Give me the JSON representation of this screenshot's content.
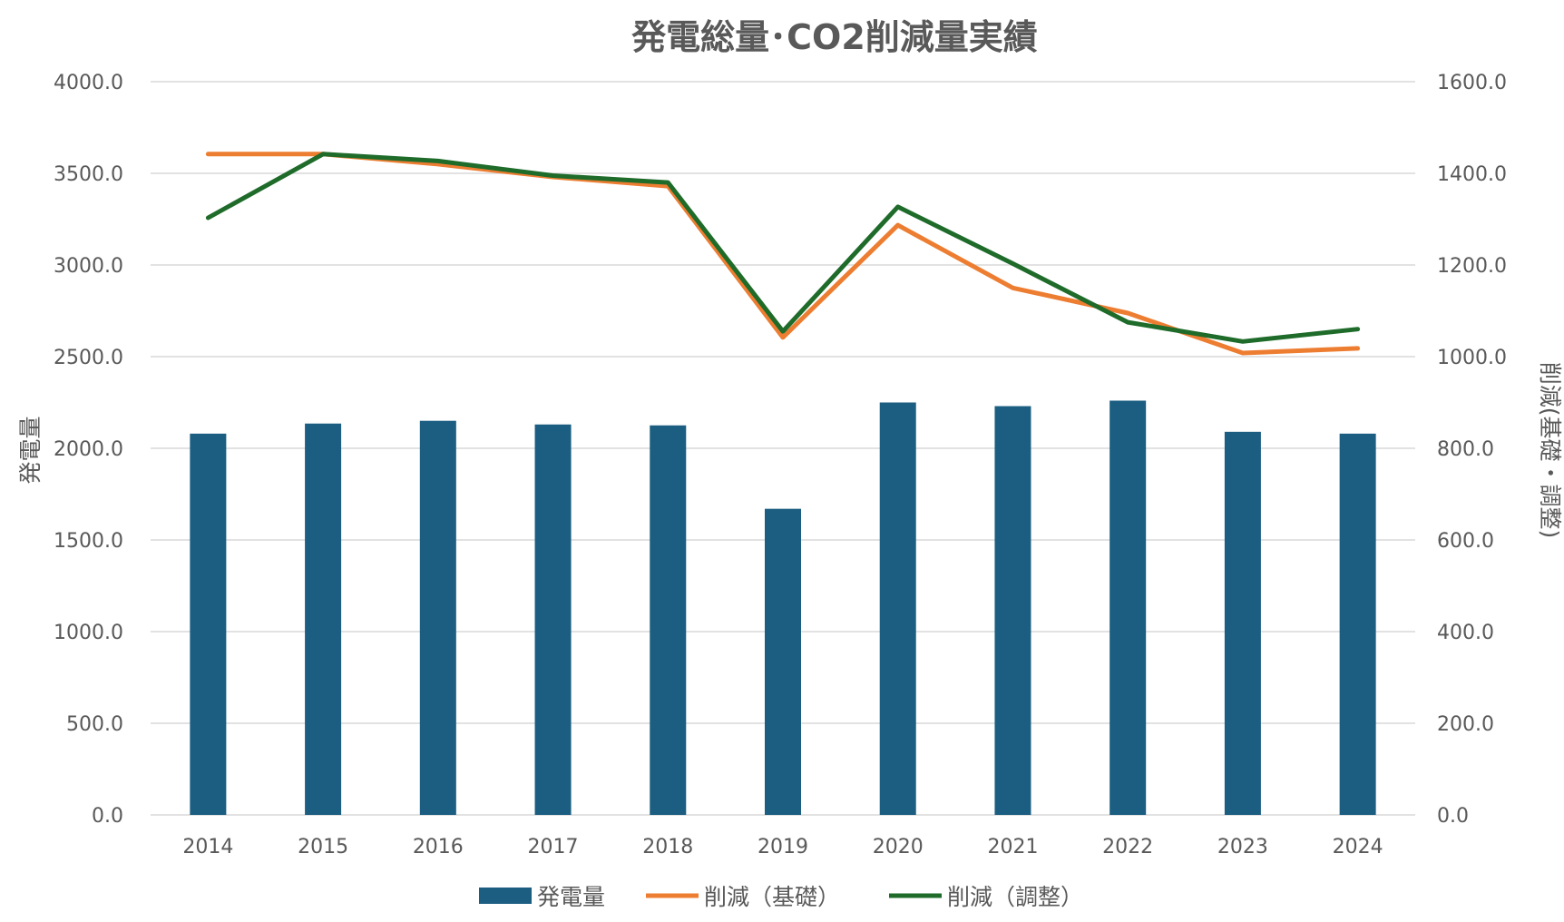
{
  "chart_data": {
    "type": "bar",
    "title": "発電総量･CO2削減量実績",
    "xlabel": "",
    "ylabel": "発電量",
    "y2label": "削減(基礎・調整)",
    "categories": [
      "2014",
      "2015",
      "2016",
      "2017",
      "2018",
      "2019",
      "2020",
      "2021",
      "2022",
      "2023",
      "2024"
    ],
    "ylim": [
      0,
      4000
    ],
    "y2lim": [
      0,
      1600
    ],
    "y_ticks": [
      "0.0",
      "500.0",
      "1000.0",
      "1500.0",
      "2000.0",
      "2500.0",
      "3000.0",
      "3500.0",
      "4000.0"
    ],
    "y2_ticks": [
      "0.0",
      "200.0",
      "400.0",
      "600.0",
      "800.0",
      "1000.0",
      "1200.0",
      "1400.0",
      "1600.0"
    ],
    "grid": true,
    "legend_position": "bottom",
    "series": [
      {
        "name": "発電量",
        "type": "bar",
        "axis": "left",
        "color": "#1b5e82",
        "values": [
          2080,
          2135,
          2150,
          2130,
          2125,
          1670,
          2250,
          2230,
          2260,
          2090,
          2080
        ]
      },
      {
        "name": "削減（基礎）",
        "type": "line",
        "axis": "right",
        "color": "#ed7d31",
        "values": [
          1442,
          1442,
          1420,
          1392,
          1372,
          1042,
          1287,
          1150,
          1095,
          1008,
          1018
        ]
      },
      {
        "name": "削減（調整）",
        "type": "line",
        "axis": "right",
        "color": "#1e6b2a",
        "values": [
          1303,
          1442,
          1427,
          1395,
          1380,
          1055,
          1327,
          1203,
          1075,
          1033,
          1060
        ]
      }
    ]
  }
}
